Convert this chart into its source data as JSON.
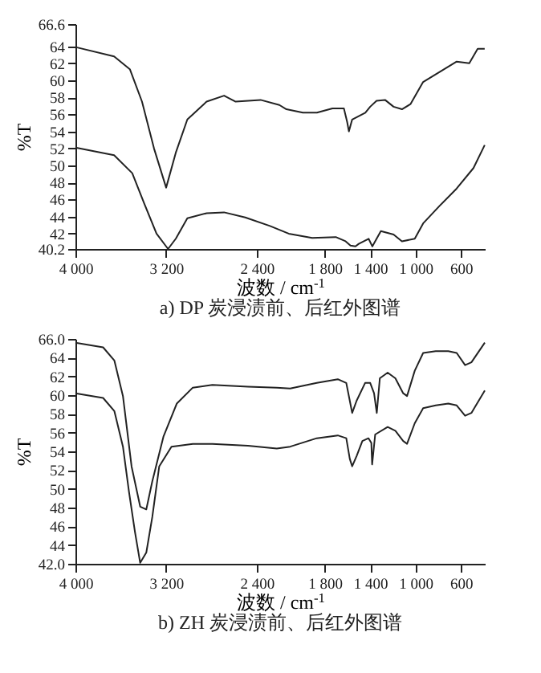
{
  "chart_data": [
    {
      "type": "line",
      "title": "a) DP 炭浸渍前、后红外图谱",
      "xlabel": "波数 / cm$^{-1}$",
      "ylabel": "%T",
      "xlim": [
        4000,
        389
      ],
      "ylim": [
        40.2,
        66.6
      ],
      "xticks": [
        {
          "value": 4000,
          "label": "4 000"
        },
        {
          "value": 3200,
          "label": "3 200"
        },
        {
          "value": 2400,
          "label": "2 400"
        },
        {
          "value": 1800,
          "label": "1 800"
        },
        {
          "value": 1400,
          "label": "1 400"
        },
        {
          "value": 1000,
          "label": "1 000"
        },
        600
      ],
      "yticks": [
        40.2,
        42,
        44,
        46,
        48,
        50,
        52,
        54,
        56,
        58,
        60,
        62,
        64,
        66.6
      ],
      "grid": false,
      "legend": false,
      "marker": "none",
      "line_style": "solid",
      "series": [
        {
          "color": "#222222",
          "x": [
            4000,
            3659,
            3520,
            3413,
            3307,
            3200,
            3115,
            3013,
            2843,
            2689,
            2587,
            2367,
            2201,
            2139,
            1994,
            1870,
            1733,
            1632,
            1603,
            1588,
            1559,
            1501,
            1443,
            1400,
            1344,
            1269,
            1194,
            1120,
            1045,
            933,
            785,
            637,
            526,
            452,
            390
          ],
          "values": [
            63.9,
            62.8,
            61.3,
            57.5,
            52.0,
            47.4,
            51.5,
            55.4,
            57.5,
            58.2,
            57.5,
            57.7,
            57.1,
            56.6,
            56.2,
            56.2,
            56.7,
            56.7,
            55.1,
            54.0,
            55.4,
            55.8,
            56.2,
            56.9,
            57.6,
            57.7,
            56.9,
            56.6,
            57.2,
            59.8,
            61.0,
            62.2,
            62.0,
            63.7,
            63.7
          ]
        },
        {
          "color": "#222222",
          "x": [
            4000,
            3659,
            3499,
            3392,
            3285,
            3183,
            3115,
            3013,
            2843,
            2689,
            2502,
            2284,
            2119,
            1912,
            1704,
            1617,
            1574,
            1530,
            1501,
            1414,
            1381,
            1306,
            1194,
            1120,
            1007,
            933,
            785,
            637,
            489,
            390
          ],
          "values": [
            52.1,
            51.2,
            49.1,
            45.5,
            42.0,
            40.2,
            41.4,
            43.8,
            44.4,
            44.5,
            43.9,
            42.9,
            42.0,
            41.5,
            41.6,
            41.1,
            40.6,
            40.5,
            40.8,
            41.4,
            40.5,
            42.3,
            41.9,
            41.1,
            41.4,
            43.2,
            45.3,
            47.3,
            49.7,
            52.4
          ]
        }
      ]
    },
    {
      "type": "line",
      "title": "b) ZH 炭浸渍前、后红外图谱",
      "xlabel": "波数 / cm$^{-1}$",
      "ylabel": "%T",
      "xlim": [
        4000,
        389
      ],
      "ylim": [
        42,
        66
      ],
      "xticks": [
        {
          "value": 4000,
          "label": "4 000"
        },
        {
          "value": 3200,
          "label": "3 200"
        },
        {
          "value": 2400,
          "label": "2 400"
        },
        {
          "value": 1800,
          "label": "1 800"
        },
        {
          "value": 1400,
          "label": "1 400"
        },
        {
          "value": 1000,
          "label": "1 000"
        },
        600
      ],
      "yticks": [
        {
          "value": 42,
          "label": "42.0"
        },
        44,
        46,
        48,
        50,
        52,
        54,
        56,
        58,
        60,
        62,
        64,
        {
          "value": 66,
          "label": "66.0"
        }
      ],
      "grid": false,
      "legend": false,
      "marker": "none",
      "line_style": "solid",
      "series": [
        {
          "color": "#222222",
          "x": [
            4000,
            3756,
            3657,
            3581,
            3505,
            3429,
            3375,
            3322,
            3223,
            3106,
            2965,
            2792,
            2478,
            2224,
            2106,
            1871,
            1686,
            1611,
            1580,
            1559,
            1520,
            1445,
            1400,
            1366,
            1342,
            1315,
            1246,
            1178,
            1109,
            1075,
            1007,
            933,
            822,
            711,
            637,
            563,
            507,
            389
          ],
          "values": [
            65.6,
            65.1,
            63.7,
            59.9,
            52.4,
            48.1,
            47.8,
            50.8,
            55.6,
            59.1,
            60.8,
            61.1,
            60.9,
            60.8,
            60.7,
            61.3,
            61.7,
            61.3,
            59.4,
            58.1,
            59.4,
            61.3,
            61.3,
            60.2,
            58.1,
            61.8,
            62.4,
            61.8,
            60.2,
            59.9,
            62.6,
            64.5,
            64.7,
            64.7,
            64.5,
            63.2,
            63.5,
            65.6
          ]
        },
        {
          "color": "#222222",
          "x": [
            4000,
            3756,
            3657,
            3581,
            3528,
            3475,
            3429,
            3375,
            3322,
            3261,
            3153,
            2965,
            2792,
            2478,
            2224,
            2106,
            1871,
            1686,
            1611,
            1580,
            1559,
            1520,
            1469,
            1415,
            1390,
            1383,
            1356,
            1246,
            1178,
            1109,
            1075,
            1007,
            933,
            822,
            711,
            637,
            563,
            507,
            389
          ],
          "values": [
            60.2,
            59.7,
            58.3,
            54.5,
            49.7,
            45.4,
            42.1,
            43.2,
            47.0,
            52.4,
            54.5,
            54.8,
            54.8,
            54.6,
            54.3,
            54.5,
            55.4,
            55.7,
            55.4,
            53.2,
            52.4,
            53.5,
            55.1,
            55.4,
            54.9,
            52.6,
            55.8,
            56.6,
            56.2,
            55.1,
            54.8,
            57.0,
            58.6,
            58.9,
            59.1,
            58.9,
            57.8,
            58.1,
            60.5
          ]
        }
      ]
    }
  ]
}
